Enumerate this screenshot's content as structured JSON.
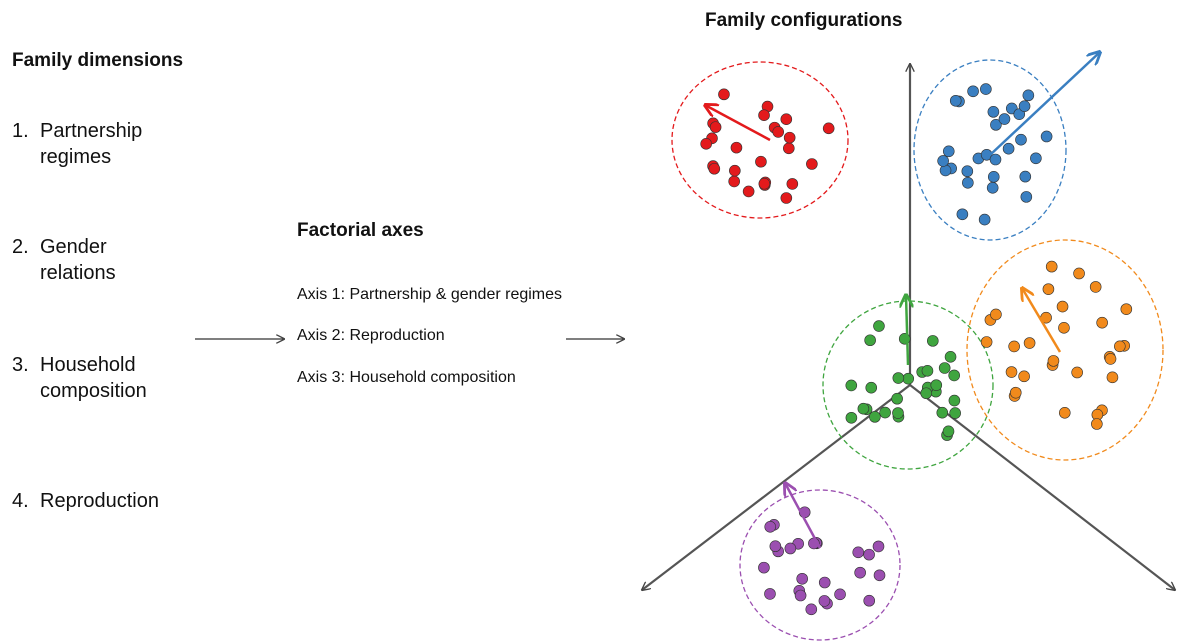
{
  "dimensions": {
    "title": "Family dimensions",
    "items": [
      {
        "number": "1.",
        "label": "Partnership regimes"
      },
      {
        "number": "2.",
        "label": "Gender relations"
      },
      {
        "number": "3.",
        "label": "Household composition"
      },
      {
        "number": "4.",
        "label": "Reproduction"
      }
    ]
  },
  "factorial_axes": {
    "title": "Factorial axes",
    "items": [
      "Axis 1: Partnership & gender regimes",
      "Axis 2: Reproduction",
      "Axis 3: Household composition"
    ]
  },
  "configurations": {
    "title": "Family configurations"
  }
}
